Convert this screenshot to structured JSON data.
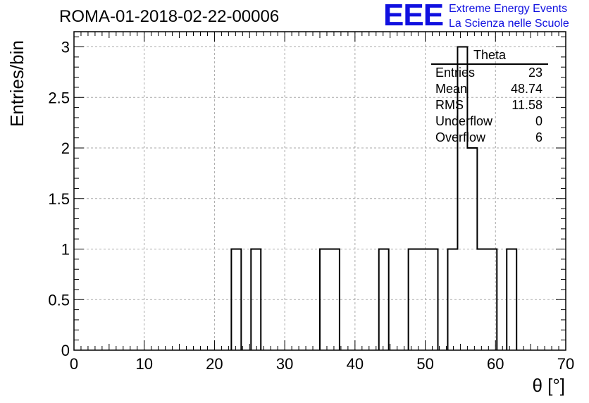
{
  "header": {
    "run_title": "ROMA-01-2018-02-22-00006",
    "logo_text": "EEE",
    "logo_line1": "Extreme Energy Events",
    "logo_line2": "La Scienza nelle Scuole",
    "logo_color": "#1010e0"
  },
  "stats_box": {
    "title": "Theta",
    "rows": [
      {
        "label": "Entries",
        "value": "23"
      },
      {
        "label": "Mean",
        "value": "48.74"
      },
      {
        "label": "RMS",
        "value": "11.58"
      },
      {
        "label": "Underflow",
        "value": "0"
      },
      {
        "label": "Overflow",
        "value": "6"
      }
    ]
  },
  "chart_data": {
    "type": "bar",
    "histogram_style": "step",
    "xlabel": "θ [°]",
    "ylabel": "Entries/bin",
    "xlim": [
      0,
      70
    ],
    "ylim": [
      0,
      3.15
    ],
    "grid": true,
    "x_ticks": [
      "0",
      "10",
      "20",
      "30",
      "40",
      "50",
      "60",
      "70"
    ],
    "y_ticks": [
      "0",
      "0.5",
      "1",
      "1.5",
      "2",
      "2.5",
      "3"
    ],
    "bin_width": 1.4,
    "bins": [
      {
        "x_start": 22.4,
        "value": 1
      },
      {
        "x_start": 25.2,
        "value": 1
      },
      {
        "x_start": 35.0,
        "value": 1
      },
      {
        "x_start": 36.4,
        "value": 1
      },
      {
        "x_start": 43.4,
        "value": 1
      },
      {
        "x_start": 47.6,
        "value": 1
      },
      {
        "x_start": 49.0,
        "value": 1
      },
      {
        "x_start": 50.4,
        "value": 1
      },
      {
        "x_start": 53.2,
        "value": 1
      },
      {
        "x_start": 54.6,
        "value": 3
      },
      {
        "x_start": 56.0,
        "value": 2
      },
      {
        "x_start": 57.4,
        "value": 1
      },
      {
        "x_start": 58.8,
        "value": 1
      },
      {
        "x_start": 61.6,
        "value": 1
      }
    ]
  }
}
